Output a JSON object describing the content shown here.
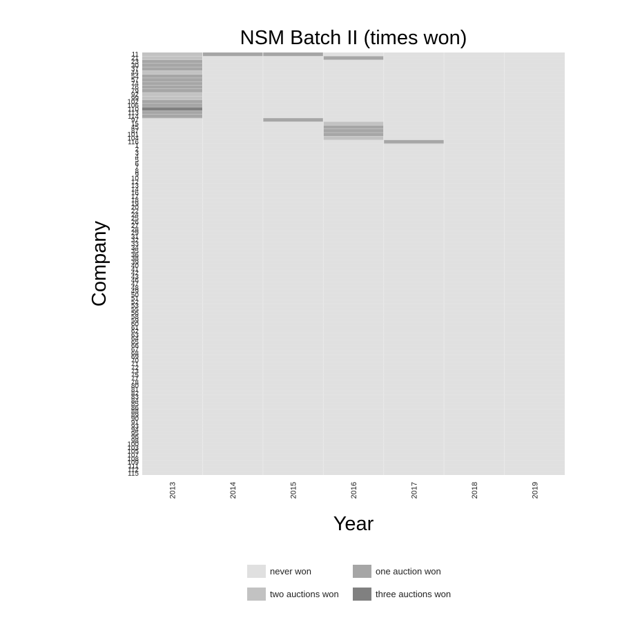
{
  "chart_data": {
    "type": "heatmap",
    "title": "NSM Batch II (times won)",
    "xlabel": "Year",
    "ylabel": "Company",
    "x": [
      "2013",
      "2014",
      "2015",
      "2016",
      "2017",
      "2018",
      "2019"
    ],
    "y": [
      "11",
      "21",
      "23",
      "30",
      "37",
      "44",
      "54",
      "57",
      "74",
      "76",
      "79",
      "92",
      "99",
      "102",
      "106",
      "110",
      "113",
      "114",
      "97",
      "15",
      "45",
      "87",
      "101",
      "104",
      "116",
      "1",
      "2",
      "3",
      "4",
      "5",
      "6",
      "7",
      "8",
      "9",
      "10",
      "12",
      "13",
      "14",
      "16",
      "17",
      "18",
      "19",
      "20",
      "22",
      "24",
      "25",
      "26",
      "27",
      "28",
      "29",
      "31",
      "32",
      "33",
      "34",
      "35",
      "36",
      "38",
      "39",
      "40",
      "41",
      "42",
      "43",
      "46",
      "47",
      "48",
      "49",
      "50",
      "51",
      "52",
      "53",
      "55",
      "56",
      "58",
      "59",
      "60",
      "61",
      "62",
      "63",
      "64",
      "65",
      "66",
      "67",
      "68",
      "69",
      "70",
      "71",
      "72",
      "73",
      "75",
      "77",
      "78",
      "80",
      "81",
      "82",
      "83",
      "84",
      "85",
      "86",
      "88",
      "89",
      "90",
      "91",
      "93",
      "94",
      "95",
      "96",
      "98",
      "100",
      "103",
      "105",
      "107",
      "108",
      "109",
      "111",
      "112",
      "115"
    ],
    "values_note_levels": [
      0,
      1,
      2,
      3
    ],
    "cells": [
      {
        "company": "11",
        "year": "2013",
        "value": 2
      },
      {
        "company": "11",
        "year": "2014",
        "value": 1
      },
      {
        "company": "11",
        "year": "2015",
        "value": 1
      },
      {
        "company": "21",
        "year": "2013",
        "value": 2
      },
      {
        "company": "21",
        "year": "2016",
        "value": 1
      },
      {
        "company": "23",
        "year": "2013",
        "value": 1
      },
      {
        "company": "30",
        "year": "2013",
        "value": 1
      },
      {
        "company": "37",
        "year": "2013",
        "value": 1
      },
      {
        "company": "44",
        "year": "2013",
        "value": 2
      },
      {
        "company": "54",
        "year": "2013",
        "value": 1
      },
      {
        "company": "57",
        "year": "2013",
        "value": 1
      },
      {
        "company": "74",
        "year": "2013",
        "value": 1
      },
      {
        "company": "76",
        "year": "2013",
        "value": 1
      },
      {
        "company": "79",
        "year": "2013",
        "value": 1
      },
      {
        "company": "92",
        "year": "2013",
        "value": 2
      },
      {
        "company": "99",
        "year": "2013",
        "value": 2
      },
      {
        "company": "102",
        "year": "2013",
        "value": 1
      },
      {
        "company": "106",
        "year": "2013",
        "value": 1
      },
      {
        "company": "110",
        "year": "2013",
        "value": 3
      },
      {
        "company": "113",
        "year": "2013",
        "value": 1
      },
      {
        "company": "114",
        "year": "2013",
        "value": 1
      },
      {
        "company": "97",
        "year": "2015",
        "value": 1
      },
      {
        "company": "15",
        "year": "2016",
        "value": 2
      },
      {
        "company": "45",
        "year": "2016",
        "value": 1
      },
      {
        "company": "87",
        "year": "2016",
        "value": 1
      },
      {
        "company": "101",
        "year": "2016",
        "value": 1
      },
      {
        "company": "104",
        "year": "2016",
        "value": 2
      },
      {
        "company": "116",
        "year": "2017",
        "value": 1
      }
    ],
    "legend": [
      {
        "label": "never won",
        "value": 0,
        "color": "#e0e0e0"
      },
      {
        "label": "one auction won",
        "value": 1,
        "color": "#a6a6a6"
      },
      {
        "label": "two auctions won",
        "value": 2,
        "color": "#c2c2c2"
      },
      {
        "label": "three auctions won",
        "value": 3,
        "color": "#808080"
      }
    ],
    "legend_position": "bottom",
    "grid": false
  }
}
